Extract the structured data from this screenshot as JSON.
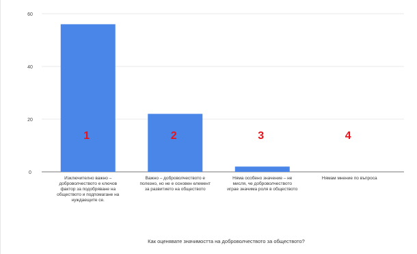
{
  "chart_data": {
    "type": "bar",
    "title": "",
    "xlabel": "Как оценявате значимостта на доброволчеството за обществото?",
    "ylabel": "",
    "ylim": [
      0,
      60
    ],
    "yticks": [
      "0",
      "20",
      "40",
      "60"
    ],
    "grid": true,
    "categories": [
      "Изключително важно – доброволчеството е ключов фактор за подобряване на обществото и подпомагане на нуждаещите се.",
      "Важно – доброволчеството е полезно, но не е основен елемент за развитието на обществото",
      "Няма особено значение – не мисля, че доброволчеството играе значима роля в обществото",
      "Нямам мнение по въпроса"
    ],
    "values": [
      56,
      22,
      2,
      0
    ],
    "annotations": [
      "1",
      "2",
      "3",
      "4"
    ],
    "bar_color": "#4a86e8",
    "annotation_color": "#e8141c"
  }
}
